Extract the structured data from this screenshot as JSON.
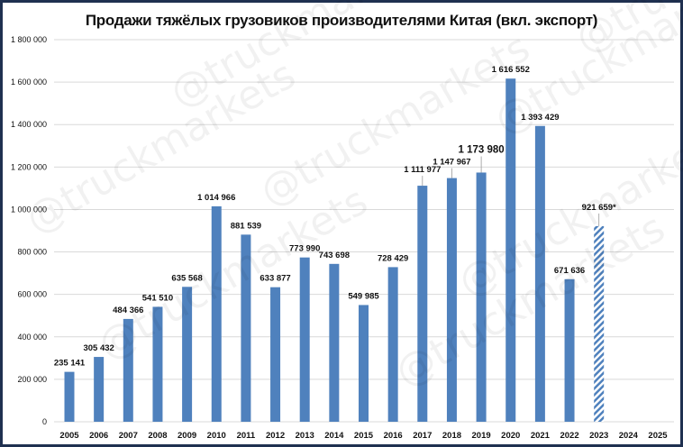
{
  "chart_data": {
    "type": "bar",
    "title": "Продажи тяжёлых грузовиков производителями Китая (вкл. экспорт)",
    "xlabel": "",
    "ylabel": "",
    "ylim": [
      0,
      1800000
    ],
    "yticks": [
      0,
      200000,
      400000,
      600000,
      800000,
      1000000,
      1200000,
      1400000,
      1600000,
      1800000
    ],
    "ytick_labels": [
      "0",
      "200 000",
      "400 000",
      "600 000",
      "800 000",
      "1 000 000",
      "1 200 000",
      "1 400 000",
      "1 600 000",
      "1 800 000"
    ],
    "grid": true,
    "categories": [
      "2005",
      "2006",
      "2007",
      "2008",
      "2009",
      "2010",
      "2011",
      "2012",
      "2013",
      "2014",
      "2015",
      "2016",
      "2017",
      "2018",
      "2019",
      "2020",
      "2021",
      "2022",
      "2023",
      "2024",
      "2025"
    ],
    "values": [
      235141,
      305432,
      484366,
      541510,
      635568,
      1014966,
      881539,
      633877,
      773990,
      743698,
      549985,
      728429,
      1111977,
      1147967,
      1173980,
      1616552,
      1393429,
      671636,
      921659,
      null,
      null
    ],
    "data_labels": [
      "235 141",
      "305 432",
      "484 366",
      "541 510",
      "635 568",
      "1 014 966",
      "881 539",
      "633 877",
      "773 990",
      "743 698",
      "549 985",
      "728 429",
      "1 111 977",
      "1 147 967",
      "1 173 980",
      "1 616 552",
      "1 393 429",
      "671 636",
      "921 659*",
      "",
      ""
    ],
    "estimated": [
      false,
      false,
      false,
      false,
      false,
      false,
      false,
      false,
      false,
      false,
      false,
      false,
      false,
      false,
      false,
      false,
      false,
      false,
      true,
      false,
      false
    ],
    "bar_color": "#4f81bd",
    "watermark": "@truckmarkets"
  }
}
